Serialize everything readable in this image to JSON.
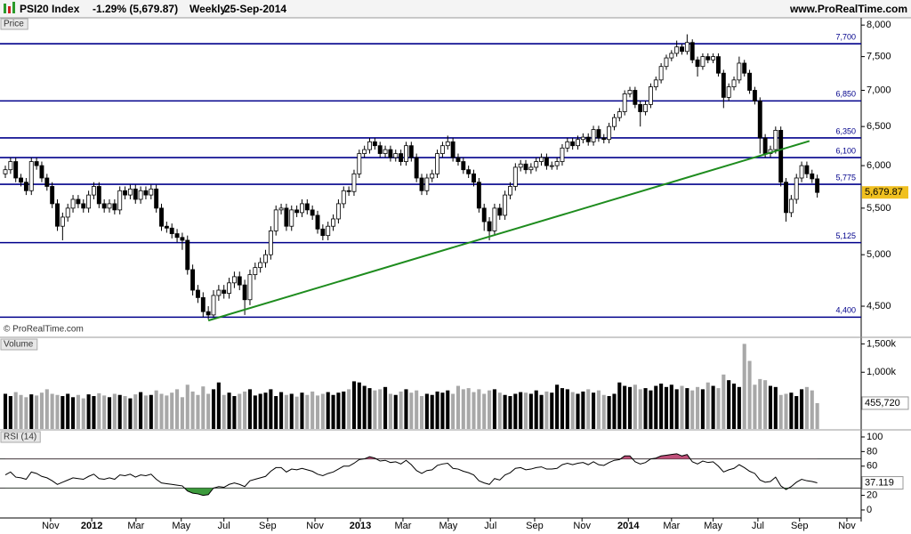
{
  "header": {
    "symbol": "PSI20 Index",
    "change": "-1.29% (5,679.87)",
    "period": "Weekly",
    "date": "25-Sep-2014",
    "site": "www.ProRealTime.com"
  },
  "chart_data": [
    {
      "type": "candlestick",
      "title": "Price",
      "annotation": "© ProRealTime.com",
      "open": [
        5900,
        5950,
        6050,
        5850,
        5800,
        5700,
        6050,
        6000,
        5850,
        5750,
        5550,
        5300,
        5400,
        5500,
        5600,
        5550,
        5500,
        5650,
        5750,
        5550,
        5500,
        5550,
        5480,
        5700,
        5650,
        5720,
        5600,
        5700,
        5650,
        5720,
        5500,
        5300,
        5280,
        5220,
        5180,
        5150,
        4850,
        4650,
        4580,
        4450,
        4420,
        4600,
        4650,
        4620,
        4720,
        4780,
        4700,
        4560,
        4800,
        4870,
        4920,
        5000,
        5250,
        5480,
        5500,
        5300,
        5480,
        5450,
        5550,
        5480,
        5420,
        5270,
        5200,
        5300,
        5380,
        5550,
        5700,
        5690,
        5900,
        6150,
        6200,
        6300,
        6250,
        6150,
        6200,
        6100,
        6150,
        6050,
        6250,
        6100,
        5850,
        5700,
        5850,
        5900,
        6150,
        6250,
        6300,
        6100,
        6050,
        5950,
        5900,
        5800,
        5500,
        5350,
        5250,
        5500,
        5420,
        5650,
        5750,
        5980,
        6020,
        5950,
        5980,
        6050,
        6100,
        6000,
        6000,
        6050,
        6220,
        6300,
        6250,
        6330,
        6360,
        6300,
        6460,
        6350,
        6330,
        6500,
        6620,
        6700,
        6950,
        7000,
        6800,
        6700,
        6800,
        7050,
        7150,
        7350,
        7480,
        7550,
        7650,
        7580,
        7720,
        7450,
        7350,
        7500,
        7450,
        7500,
        7250,
        6900,
        7050,
        7150,
        7400,
        7250,
        7000,
        6850,
        6350,
        6150,
        6200,
        6450,
        5800,
        5450,
        5600,
        5850,
        6000,
        5900,
        5840
      ],
      "high": [
        6000,
        6100,
        6100,
        5900,
        5850,
        6100,
        6100,
        6050,
        5900,
        5800,
        5600,
        5450,
        5550,
        5650,
        5650,
        5600,
        5700,
        5800,
        5800,
        5600,
        5600,
        5600,
        5750,
        5750,
        5770,
        5770,
        5750,
        5750,
        5770,
        5770,
        5550,
        5350,
        5330,
        5270,
        5230,
        5200,
        4900,
        4700,
        4630,
        4500,
        4650,
        4700,
        4700,
        4770,
        4830,
        4830,
        4750,
        4850,
        4920,
        4970,
        5050,
        5300,
        5530,
        5550,
        5550,
        5530,
        5530,
        5600,
        5600,
        5530,
        5470,
        5320,
        5350,
        5430,
        5600,
        5750,
        5750,
        5950,
        6200,
        6250,
        6350,
        6350,
        6300,
        6250,
        6250,
        6200,
        6200,
        6300,
        6300,
        6150,
        5900,
        5900,
        5950,
        6200,
        6300,
        6380,
        6350,
        6150,
        6100,
        6000,
        5950,
        5850,
        5550,
        5400,
        5550,
        5550,
        5700,
        5800,
        6030,
        6070,
        6070,
        6030,
        6100,
        6150,
        6150,
        6050,
        6100,
        6270,
        6350,
        6350,
        6380,
        6410,
        6410,
        6510,
        6510,
        6400,
        6550,
        6670,
        6750,
        7000,
        7050,
        7050,
        6850,
        6850,
        7100,
        7200,
        7400,
        7530,
        7600,
        7750,
        7700,
        7850,
        7770,
        7500,
        7550,
        7550,
        7550,
        7550,
        7300,
        7100,
        7200,
        7500,
        7450,
        7300,
        7050,
        6900,
        6400,
        6250,
        6500,
        6500,
        5850,
        5650,
        5900,
        6050,
        6050,
        5950,
        5890
      ],
      "low": [
        5850,
        5900,
        5800,
        5750,
        5650,
        5650,
        5950,
        5800,
        5700,
        5500,
        5250,
        5150,
        5350,
        5450,
        5500,
        5450,
        5450,
        5600,
        5500,
        5450,
        5450,
        5430,
        5430,
        5600,
        5600,
        5550,
        5550,
        5600,
        5600,
        5450,
        5250,
        5230,
        5170,
        5130,
        5050,
        4800,
        4600,
        4530,
        4400,
        4380,
        4400,
        4550,
        4570,
        4570,
        4670,
        4650,
        4420,
        4510,
        4750,
        4820,
        4870,
        4950,
        5200,
        5430,
        5250,
        5250,
        5400,
        5400,
        5430,
        5370,
        5220,
        5150,
        5150,
        5250,
        5330,
        5500,
        5640,
        5640,
        5850,
        6100,
        6150,
        6200,
        6100,
        6100,
        6050,
        6050,
        6000,
        6000,
        6050,
        5800,
        5650,
        5650,
        5800,
        5850,
        6100,
        6200,
        6050,
        6000,
        5900,
        5850,
        5750,
        5450,
        5250,
        5150,
        5200,
        5370,
        5370,
        5600,
        5700,
        5930,
        5900,
        5900,
        5930,
        6000,
        5950,
        5950,
        5950,
        6000,
        6170,
        6200,
        6200,
        6280,
        6250,
        6250,
        6300,
        6280,
        6280,
        6450,
        6570,
        6650,
        6900,
        6750,
        6500,
        6650,
        6750,
        7000,
        7100,
        7300,
        7430,
        7500,
        7530,
        7530,
        7400,
        7200,
        7300,
        7400,
        7400,
        7200,
        6750,
        6850,
        7000,
        7100,
        7200,
        6950,
        6800,
        6150,
        6100,
        6100,
        6150,
        5750,
        5350,
        5400,
        5550,
        5800,
        5850,
        5790,
        5620
      ],
      "close": [
        5950,
        6050,
        5850,
        5800,
        5700,
        6050,
        6000,
        5850,
        5750,
        5550,
        5300,
        5400,
        5500,
        5600,
        5550,
        5500,
        5650,
        5750,
        5550,
        5500,
        5550,
        5480,
        5700,
        5650,
        5720,
        5600,
        5700,
        5650,
        5720,
        5500,
        5300,
        5280,
        5220,
        5180,
        5150,
        4850,
        4650,
        4580,
        4450,
        4420,
        4600,
        4650,
        4620,
        4720,
        4780,
        4700,
        4560,
        4800,
        4870,
        4920,
        5000,
        5250,
        5480,
        5500,
        5300,
        5480,
        5450,
        5550,
        5480,
        5420,
        5270,
        5200,
        5300,
        5380,
        5550,
        5700,
        5690,
        5900,
        6150,
        6200,
        6300,
        6250,
        6150,
        6200,
        6100,
        6150,
        6050,
        6250,
        6100,
        5850,
        5700,
        5850,
        5900,
        6150,
        6250,
        6300,
        6100,
        6050,
        5950,
        5900,
        5800,
        5500,
        5350,
        5250,
        5500,
        5420,
        5650,
        5750,
        5980,
        6020,
        5950,
        5980,
        6050,
        6100,
        6000,
        6000,
        6050,
        6220,
        6300,
        6250,
        6330,
        6360,
        6300,
        6460,
        6350,
        6330,
        6500,
        6620,
        6700,
        6950,
        7000,
        6800,
        6700,
        6800,
        7050,
        7150,
        7350,
        7480,
        7550,
        7650,
        7580,
        7720,
        7450,
        7350,
        7500,
        7450,
        7500,
        7250,
        6900,
        7050,
        7150,
        7400,
        7250,
        7000,
        6850,
        6350,
        6150,
        6200,
        6450,
        5800,
        5450,
        5600,
        5850,
        6000,
        5900,
        5840,
        5679.87
      ],
      "last_label": "5,679.87",
      "up_color": "#ffffff",
      "down_color": "#000000",
      "level_color": "#00008b",
      "trend_color": "#1e8c1e",
      "label_color": "#f0c020",
      "log_scale": true,
      "xlim": [
        -1.026,
        164.44
      ],
      "ylim": [
        4230,
        8120
      ],
      "yticks": [
        {
          "value": 8000,
          "label": "8,000"
        },
        {
          "value": 7500,
          "label": "7,500"
        },
        {
          "value": 7000,
          "label": "7,000"
        },
        {
          "value": 6500,
          "label": "6,500"
        },
        {
          "value": 6000,
          "label": "6,000"
        },
        {
          "value": 5500,
          "label": "5,500"
        },
        {
          "value": 5000,
          "label": "5,000"
        },
        {
          "value": 4500,
          "label": "4,500"
        }
      ],
      "levels": [
        {
          "value": 7700,
          "label": "7,700"
        },
        {
          "value": 6850,
          "label": "6,850"
        },
        {
          "value": 6350,
          "label": "6,350"
        },
        {
          "value": 6100,
          "label": "6,100"
        },
        {
          "value": 5775,
          "label": "5,775"
        },
        {
          "value": 5125,
          "label": "5,125"
        },
        {
          "value": 4400,
          "label": "4,400"
        }
      ],
      "trendline": {
        "x": [
          39,
          154.5
        ],
        "y": [
          4370,
          6310
        ]
      }
    },
    {
      "type": "bar",
      "title": "Volume",
      "values": [
        620000,
        580000,
        650000,
        600000,
        560000,
        610000,
        590000,
        640000,
        700000,
        620000,
        600000,
        580000,
        620000,
        560000,
        600000,
        540000,
        610000,
        580000,
        630000,
        590000,
        560000,
        620000,
        600000,
        580000,
        540000,
        610000,
        650000,
        590000,
        600000,
        680000,
        620000,
        590000,
        640000,
        700000,
        560000,
        780000,
        660000,
        600000,
        750000,
        620000,
        700000,
        820000,
        600000,
        640000,
        580000,
        620000,
        660000,
        700000,
        590000,
        620000,
        640000,
        700000,
        580000,
        650000,
        600000,
        620000,
        570000,
        640000,
        600000,
        660000,
        590000,
        620000,
        650000,
        600000,
        640000,
        660000,
        700000,
        840000,
        820000,
        760000,
        720000,
        680000,
        700000,
        740000,
        620000,
        600000,
        660000,
        700000,
        640000,
        680000,
        580000,
        620000,
        600000,
        660000,
        640000,
        680000,
        620000,
        760000,
        700000,
        720000,
        650000,
        700000,
        620000,
        680000,
        700000,
        640000,
        600000,
        580000,
        620000,
        650000,
        640000,
        620000,
        680000,
        600000,
        660000,
        640000,
        780000,
        720000,
        700000,
        650000,
        620000,
        660000,
        700000,
        640000,
        680000,
        600000,
        580000,
        620000,
        820000,
        760000,
        740000,
        780000,
        700000,
        720000,
        680000,
        760000,
        800000,
        740000,
        780000,
        700000,
        760000,
        720000,
        680000,
        740000,
        700000,
        820000,
        760000,
        720000,
        960000,
        860000,
        800000,
        740000,
        1500000,
        1200000,
        780000,
        880000,
        860000,
        760000,
        740000,
        600000,
        620000,
        640000,
        580000,
        700000,
        740000,
        680000,
        455720
      ],
      "last_label": "455,720",
      "up_color": "#000000",
      "down_color": "#a8a8a8",
      "xlim": [
        -1.026,
        164.44
      ],
      "ylim": [
        0,
        1600000
      ],
      "yticks": [
        {
          "value": 1500000,
          "label": "1,500k"
        },
        {
          "value": 1000000,
          "label": "1,000k"
        }
      ]
    },
    {
      "type": "line",
      "title": "RSI (14)",
      "values": [
        48,
        52,
        45,
        44,
        42,
        52,
        50,
        46,
        44,
        40,
        35,
        38,
        41,
        44,
        43,
        42,
        46,
        49,
        43,
        42,
        44,
        42,
        48,
        47,
        49,
        45,
        48,
        47,
        49,
        42,
        37,
        36,
        35,
        34,
        33,
        26,
        23,
        22,
        20,
        21,
        30,
        32,
        31,
        35,
        37,
        35,
        32,
        40,
        42,
        44,
        46,
        53,
        58,
        58,
        52,
        56,
        55,
        57,
        55,
        53,
        49,
        47,
        50,
        52,
        56,
        60,
        60,
        64,
        69,
        70,
        73,
        71,
        67,
        68,
        65,
        66,
        63,
        68,
        62,
        54,
        50,
        54,
        55,
        61,
        63,
        64,
        57,
        56,
        53,
        51,
        48,
        40,
        37,
        35,
        43,
        41,
        48,
        51,
        57,
        58,
        55,
        56,
        58,
        59,
        56,
        56,
        57,
        62,
        64,
        62,
        64,
        65,
        62,
        66,
        62,
        61,
        65,
        68,
        69,
        74,
        74,
        66,
        63,
        65,
        70,
        71,
        74,
        75,
        76,
        77,
        74,
        76,
        66,
        63,
        67,
        65,
        66,
        60,
        52,
        55,
        57,
        62,
        58,
        53,
        50,
        41,
        38,
        39,
        45,
        33,
        28,
        32,
        38,
        42,
        40,
        39,
        37.119
      ],
      "color": "#000000",
      "high_fill": "#c0507a",
      "low_fill": "#3c9a3c",
      "level_color": "#333333",
      "levels": [
        30,
        70
      ],
      "xlim": [
        -1.026,
        164.44
      ],
      "ylim": [
        -11,
        108.5
      ],
      "yticks": [
        100,
        80,
        60,
        20,
        0
      ],
      "xticks": [
        {
          "value": 8.7,
          "label": "Nov"
        },
        {
          "value": 16.6,
          "label": "2012"
        },
        {
          "value": 25.1,
          "label": "Mar"
        },
        {
          "value": 33.8,
          "label": "May"
        },
        {
          "value": 42,
          "label": "Jul"
        },
        {
          "value": 50.4,
          "label": "Sep"
        },
        {
          "value": 59.5,
          "label": "Nov"
        },
        {
          "value": 68.2,
          "label": "2013"
        },
        {
          "value": 76.4,
          "label": "Mar"
        },
        {
          "value": 85.1,
          "label": "May"
        },
        {
          "value": 93.2,
          "label": "Jul"
        },
        {
          "value": 101.7,
          "label": "Sep"
        },
        {
          "value": 110.8,
          "label": "Nov"
        },
        {
          "value": 119.7,
          "label": "2014"
        },
        {
          "value": 128,
          "label": "Mar"
        },
        {
          "value": 136,
          "label": "May"
        },
        {
          "value": 144.6,
          "label": "Jul"
        },
        {
          "value": 152.6,
          "label": "Sep"
        },
        {
          "value": 161.7,
          "label": "Nov"
        }
      ]
    }
  ]
}
